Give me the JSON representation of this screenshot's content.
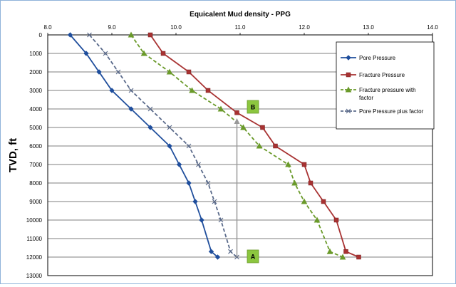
{
  "chart_data": {
    "type": "line",
    "title": "Equicalent Mud density - PPG",
    "xlabel": "",
    "ylabel": "TVD, ft",
    "xlim": [
      8.0,
      14.0
    ],
    "ylim": [
      0,
      13000
    ],
    "x_ticks": [
      "8.0",
      "9.0",
      "10.0",
      "11.0",
      "12.0",
      "13.0",
      "14.0"
    ],
    "y_ticks": [
      "0",
      "1000",
      "2000",
      "3000",
      "4000",
      "5000",
      "6000",
      "7000",
      "8000",
      "9000",
      "10000",
      "11000",
      "12000",
      "13000"
    ],
    "y_inverted": true,
    "grid": "horizontal",
    "legend": "right",
    "series": [
      {
        "name": "Pore Pressure",
        "color": "#1f4e9c",
        "style": "solid",
        "marker": "diamond",
        "points": [
          [
            8.35,
            0
          ],
          [
            8.6,
            1000
          ],
          [
            8.8,
            2000
          ],
          [
            9.0,
            3000
          ],
          [
            9.3,
            4000
          ],
          [
            9.6,
            5000
          ],
          [
            9.9,
            6000
          ],
          [
            10.05,
            7000
          ],
          [
            10.2,
            8000
          ],
          [
            10.3,
            9000
          ],
          [
            10.4,
            10000
          ],
          [
            10.55,
            11700
          ],
          [
            10.65,
            12000
          ]
        ]
      },
      {
        "name": "Fracture Pressure",
        "color": "#a83232",
        "style": "solid",
        "marker": "square",
        "points": [
          [
            9.6,
            0
          ],
          [
            9.8,
            1000
          ],
          [
            10.2,
            2000
          ],
          [
            10.5,
            3000
          ],
          [
            10.95,
            4200
          ],
          [
            11.35,
            5000
          ],
          [
            11.55,
            6000
          ],
          [
            12.0,
            7000
          ],
          [
            12.1,
            8000
          ],
          [
            12.3,
            9000
          ],
          [
            12.5,
            10000
          ],
          [
            12.65,
            11700
          ],
          [
            12.85,
            12000
          ]
        ]
      },
      {
        "name": "Fracture pressure with factor",
        "color": "#6a9a2a",
        "style": "dashed",
        "marker": "triangle",
        "points": [
          [
            9.3,
            0
          ],
          [
            9.5,
            1000
          ],
          [
            9.9,
            2000
          ],
          [
            10.25,
            3000
          ],
          [
            10.7,
            4000
          ],
          [
            11.05,
            5000
          ],
          [
            11.3,
            6000
          ],
          [
            11.75,
            7000
          ],
          [
            11.85,
            8000
          ],
          [
            12.0,
            9000
          ],
          [
            12.2,
            10000
          ],
          [
            12.4,
            11700
          ],
          [
            12.6,
            12000
          ]
        ]
      },
      {
        "name": "Pore Pressure plus factor",
        "color": "#5a6a8a",
        "style": "dashed",
        "marker": "x",
        "points": [
          [
            8.65,
            0
          ],
          [
            8.9,
            1000
          ],
          [
            9.1,
            2000
          ],
          [
            9.3,
            3000
          ],
          [
            9.6,
            4000
          ],
          [
            9.9,
            5000
          ],
          [
            10.2,
            6000
          ],
          [
            10.35,
            7000
          ],
          [
            10.5,
            8000
          ],
          [
            10.6,
            9000
          ],
          [
            10.7,
            10000
          ],
          [
            10.85,
            11700
          ],
          [
            10.95,
            12000
          ]
        ]
      }
    ],
    "annotations": [
      {
        "label": "A",
        "x": 11.0,
        "y": 12000
      },
      {
        "label": "B",
        "x": 11.0,
        "y": 4000
      }
    ],
    "arrow": {
      "x": 10.95,
      "from_y": 12000,
      "to_y": 4500
    }
  }
}
